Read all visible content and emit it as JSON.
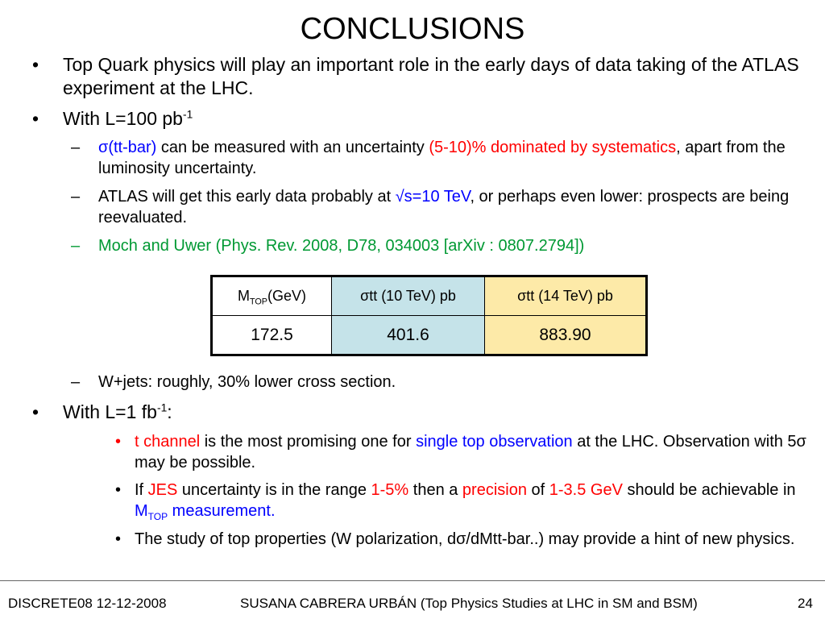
{
  "title": "CONCLUSIONS",
  "bullets": {
    "b1": "Top Quark physics will play an important role in the early days of data taking of the ATLAS experiment at the LHC.",
    "b2": {
      "text": "With L=100 pb",
      "sup": "-1"
    },
    "b2_1": {
      "a": "σ(tt-bar)",
      "b": " can be measured with an uncertainty ",
      "c": "(5-10)% dominated by systematics",
      "d": ", apart from the luminosity uncertainty."
    },
    "b2_2": {
      "a": "ATLAS will get this early data probably at ",
      "b": "√s=10 TeV",
      "c": ", or perhaps even lower: prospects are being reevaluated."
    },
    "b2_3": "Moch and Uwer (Phys. Rev. 2008, D78, 034003 [arXiv : 0807.2794])",
    "b2_4": "W+jets: roughly, 30% lower cross section.",
    "b3": {
      "text": "With L=1 fb",
      "sup": "-1",
      "tail": ":"
    },
    "b3_1": {
      "a": "t channel",
      "b": " is the most promising one for ",
      "c": "single top observation",
      "d": " at the LHC. Observation with 5σ may be possible."
    },
    "b3_2": {
      "a": "If ",
      "b": "JES",
      "c": " uncertainty is in the range ",
      "d": "1-5%",
      "e": " then  a ",
      "f": "precision",
      "g": " of ",
      "h": "1-3.5 GeV",
      "i": " should be achievable in ",
      "j": "M",
      "k": "TOP",
      "l": " measurement."
    },
    "b3_3": "The study of top properties (W polarization, dσ/dMtt-bar..) may provide a hint of new physics."
  },
  "table": {
    "h1": "M",
    "h1_sub": "TOP",
    "h1_tail": "(GeV)",
    "h2": "σtt (10 TeV) pb",
    "h3": "σtt (14 TeV) pb",
    "v1": "172.5",
    "v2": "401.6",
    "v3": "883.90"
  },
  "footer": {
    "left": "DISCRETE08 12-12-2008",
    "center": "SUSANA CABRERA URBÁN (Top Physics Studies at LHC in SM and BSM)",
    "page": "24"
  },
  "markers": {
    "dot": "•",
    "dash": "–"
  },
  "colors": {
    "blue": "#0000ff",
    "red": "#ff0000",
    "green": "#009933",
    "cell10": "#c5e3e9",
    "cell14": "#fdeaa8"
  }
}
